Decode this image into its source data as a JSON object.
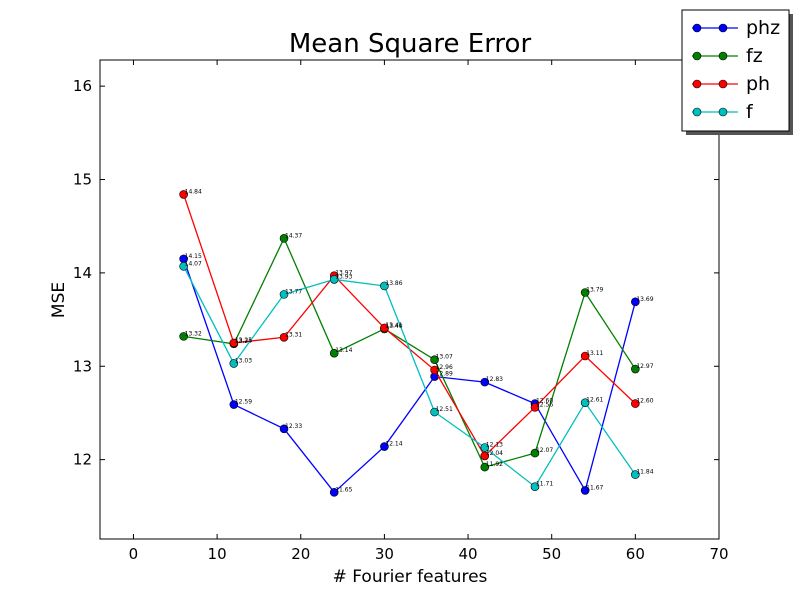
{
  "chart_data": {
    "type": "line",
    "title": "Mean Square Error",
    "xlabel": "# Fourier features",
    "ylabel": "MSE",
    "xlim": [
      -4,
      70
    ],
    "ylim": [
      11.15,
      16.28
    ],
    "xticks": [
      0,
      10,
      20,
      30,
      40,
      50,
      60,
      70
    ],
    "yticks": [
      12,
      13,
      14,
      15,
      16
    ],
    "grid": false,
    "legend_position": "top-right",
    "x": [
      6,
      12,
      18,
      24,
      30,
      36,
      42,
      48,
      54,
      60
    ],
    "series": [
      {
        "name": "phz",
        "color": "#0000ff",
        "values": [
          14.15,
          12.59,
          12.33,
          11.65,
          12.14,
          12.89,
          12.83,
          12.6,
          11.67,
          13.69
        ],
        "labels": [
          "14.15",
          "12.59",
          "12.33",
          "11.65",
          "12.14",
          "12.89",
          "12.83",
          "12.60",
          "11.67",
          "13.69"
        ]
      },
      {
        "name": "fz",
        "color": "#008000",
        "values": [
          13.32,
          13.24,
          14.37,
          13.14,
          13.4,
          13.07,
          11.92,
          12.07,
          13.79,
          12.97
        ],
        "labels": [
          "13.32",
          "13.24",
          "14.37",
          "13.14",
          "13.40",
          "13.07",
          "11.92",
          "12.07",
          "13.79",
          "12.97"
        ]
      },
      {
        "name": "ph",
        "color": "#ff0000",
        "values": [
          14.84,
          13.25,
          13.31,
          13.97,
          13.41,
          12.96,
          12.04,
          12.56,
          13.11,
          12.6
        ],
        "labels": [
          "14.84",
          "13.25",
          "13.31",
          "13.97",
          "13.41",
          "12.96",
          "12.04",
          "12.56",
          "13.11",
          "12.60"
        ]
      },
      {
        "name": "f",
        "color": "#00bfbf",
        "values": [
          14.07,
          13.03,
          13.77,
          13.93,
          13.86,
          12.51,
          12.13,
          11.71,
          12.61,
          11.84
        ],
        "labels": [
          "14.07",
          "13.03",
          "13.77",
          "13.93",
          "13.86",
          "12.51",
          "12.13",
          "11.71",
          "12.61",
          "11.84"
        ]
      }
    ]
  }
}
